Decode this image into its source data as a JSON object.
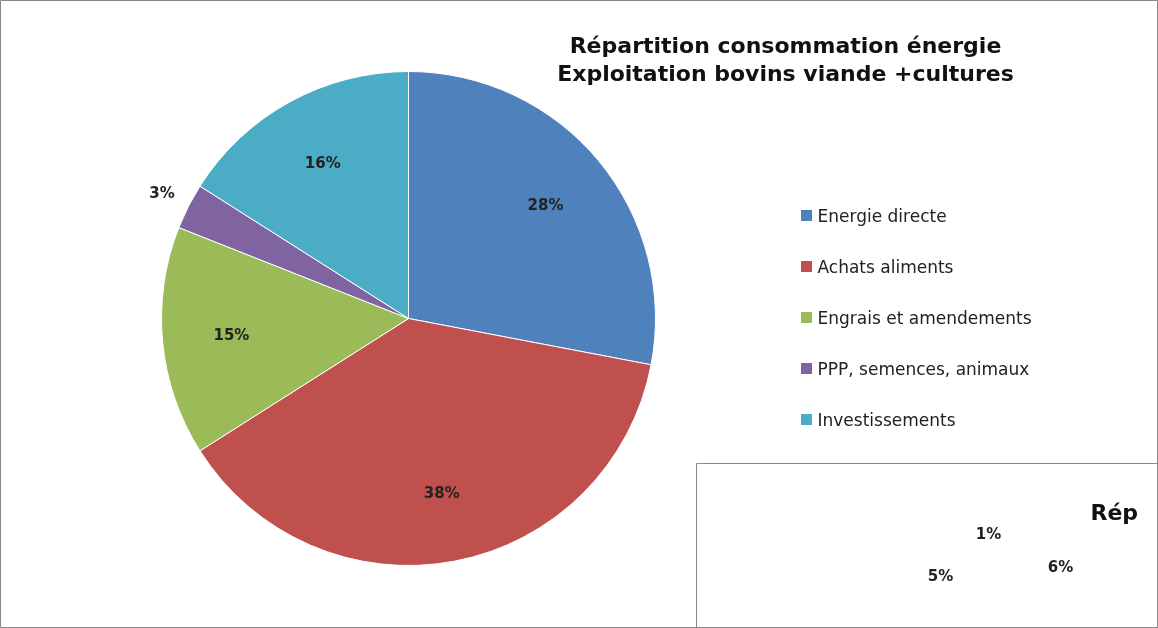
{
  "chart_data": [
    {
      "type": "pie",
      "title": "Répartition consommation énergie\nExploitation bovins viande +cultures",
      "categories": [
        "Energie directe",
        "Achats aliments",
        "Engrais et amendements",
        "PPP, semences, animaux",
        "Investissements"
      ],
      "values": [
        28,
        38,
        15,
        3,
        16
      ],
      "colors": [
        "#4f81bd",
        "#c0504d",
        "#9bbb59",
        "#8064a2",
        "#4bacc6"
      ],
      "value_labels": [
        "28%",
        "38%",
        "15%",
        "3%",
        "16%"
      ],
      "legend": "right"
    },
    {
      "type": "other",
      "title": "Rép",
      "annotations": [
        "1%",
        "6%",
        "5%"
      ]
    }
  ]
}
